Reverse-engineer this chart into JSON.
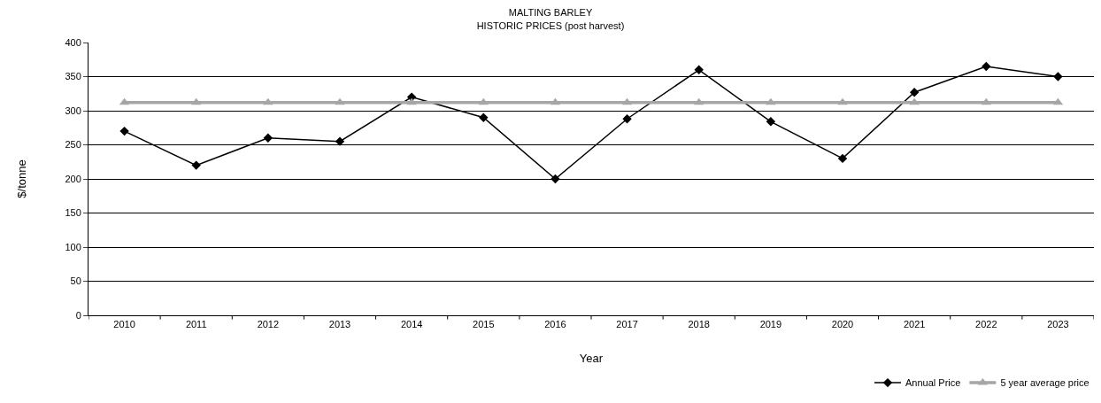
{
  "chart_data": {
    "type": "line",
    "title": "MALTING BARLEY",
    "subtitle": "HISTORIC PRICES (post harvest)",
    "xlabel": "Year",
    "ylabel": "$/tonne",
    "categories": [
      "2010",
      "2011",
      "2012",
      "2013",
      "2014",
      "2015",
      "2016",
      "2017",
      "2018",
      "2019",
      "2020",
      "2021",
      "2022",
      "2023"
    ],
    "series": [
      {
        "name": "Annual Price",
        "color": "#000000",
        "marker": "diamond",
        "values": [
          270,
          220,
          260,
          255,
          320,
          290,
          200,
          288,
          360,
          284,
          230,
          327,
          365,
          350
        ]
      },
      {
        "name": "5 year average price",
        "color": "#a6a6a6",
        "marker": "triangle",
        "values": [
          312,
          312,
          312,
          312,
          312,
          312,
          312,
          312,
          312,
          312,
          312,
          312,
          312,
          312
        ]
      }
    ],
    "ylim": [
      0,
      400
    ],
    "yticks": [
      0,
      50,
      100,
      150,
      200,
      250,
      300,
      350,
      400
    ],
    "grid": "y",
    "legend": "bottom right",
    "line_style": "solid"
  }
}
